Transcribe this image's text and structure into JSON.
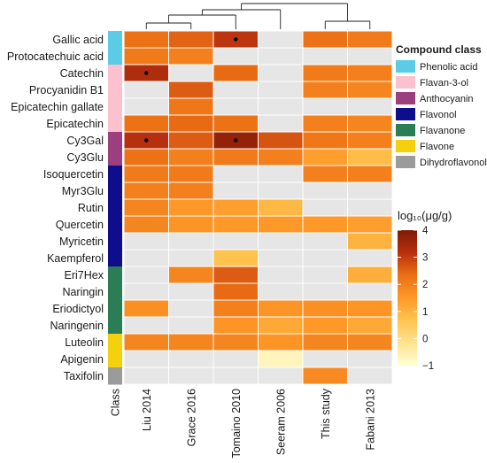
{
  "chart_data": {
    "type": "heatmap",
    "rows": [
      "Gallic acid",
      "Protocatechuic acid",
      "Catechin",
      "Procyanidin B1",
      "Epicatechin gallate",
      "Epicatechin",
      "Cy3Gal",
      "Cy3Glu",
      "Isoquercetin",
      "Myr3Glu",
      "Rutin",
      "Quercetin",
      "Myricetin",
      "Kaempferol",
      "Eri7Hex",
      "Naringin",
      "Eriodictyol",
      "Naringenin",
      "Luteolin",
      "Apigenin",
      "Taxifolin"
    ],
    "columns": [
      "Liu 2014",
      "Grace 2016",
      "Tomaino 2010",
      "Seeram 2006",
      "This study",
      "Fabani 2013"
    ],
    "column_class_label": "Class",
    "row_class": [
      "Phenolic acid",
      "Phenolic acid",
      "Flavan-3-ol",
      "Flavan-3-ol",
      "Flavan-3-ol",
      "Flavan-3-ol",
      "Anthocyanin",
      "Anthocyanin",
      "Flavonol",
      "Flavonol",
      "Flavonol",
      "Flavonol",
      "Flavonol",
      "Flavonol",
      "Flavanone",
      "Flavanone",
      "Flavanone",
      "Flavanone",
      "Flavone",
      "Flavone",
      "Dihydroflavonol"
    ],
    "values": [
      [
        2.3,
        2.5,
        3.1,
        null,
        2.3,
        2.1
      ],
      [
        2.1,
        2.0,
        null,
        null,
        null,
        null
      ],
      [
        3.3,
        null,
        2.4,
        null,
        2.1,
        2.0
      ],
      [
        null,
        2.6,
        null,
        null,
        2.0,
        1.9
      ],
      [
        null,
        2.2,
        null,
        null,
        null,
        null
      ],
      [
        2.3,
        2.4,
        2.3,
        null,
        2.0,
        1.9
      ],
      [
        3.2,
        2.6,
        3.7,
        2.7,
        2.2,
        2.0
      ],
      [
        2.3,
        2.0,
        2.1,
        2.0,
        1.4,
        0.8
      ],
      [
        2.1,
        2.1,
        null,
        null,
        2.0,
        2.0
      ],
      [
        2.0,
        2.0,
        null,
        null,
        null,
        null
      ],
      [
        1.9,
        1.5,
        1.4,
        0.9,
        null,
        null
      ],
      [
        1.9,
        1.6,
        1.5,
        1.5,
        1.5,
        1.4
      ],
      [
        null,
        null,
        null,
        null,
        null,
        1.0
      ],
      [
        null,
        null,
        0.7,
        null,
        null,
        null
      ],
      [
        null,
        1.9,
        2.6,
        null,
        null,
        1.1
      ],
      [
        null,
        null,
        2.4,
        null,
        null,
        null
      ],
      [
        1.7,
        null,
        2.0,
        1.6,
        1.7,
        1.6
      ],
      [
        null,
        null,
        1.6,
        1.2,
        1.5,
        1.2
      ],
      [
        1.9,
        1.9,
        1.9,
        1.6,
        1.9,
        1.9
      ],
      [
        null,
        null,
        null,
        -0.7,
        null,
        null
      ],
      [
        null,
        null,
        null,
        null,
        1.8,
        null
      ]
    ],
    "significance_markers": [
      [
        0,
        2
      ],
      [
        2,
        0
      ],
      [
        6,
        0
      ],
      [
        6,
        2
      ]
    ],
    "colorbar": {
      "title": "log₁₀(μg/g)",
      "min": -1,
      "max": 4,
      "ticks": [
        -1,
        0,
        1,
        2,
        3,
        4
      ],
      "colormap": [
        "#ffffd4",
        "#fee391",
        "#fec44f",
        "#fe9929",
        "#ec7014",
        "#b8300e",
        "#7f1a04"
      ],
      "missing_color": "#e6e6e6"
    },
    "dendrogram": "columns, top",
    "legend": {
      "title": "Compound class",
      "placement": "right",
      "items": [
        {
          "label": "Phenolic acid",
          "color": "#5bcbe6"
        },
        {
          "label": "Flavan-3-ol",
          "color": "#fbc1cf"
        },
        {
          "label": "Anthocyanin",
          "color": "#9c3f7e"
        },
        {
          "label": "Flavonol",
          "color": "#0e0e8c"
        },
        {
          "label": "Flavanone",
          "color": "#2a7d55"
        },
        {
          "label": "Flavone",
          "color": "#f3d10e"
        },
        {
          "label": "Dihydroflavonol",
          "color": "#9b9b9b"
        }
      ]
    }
  }
}
